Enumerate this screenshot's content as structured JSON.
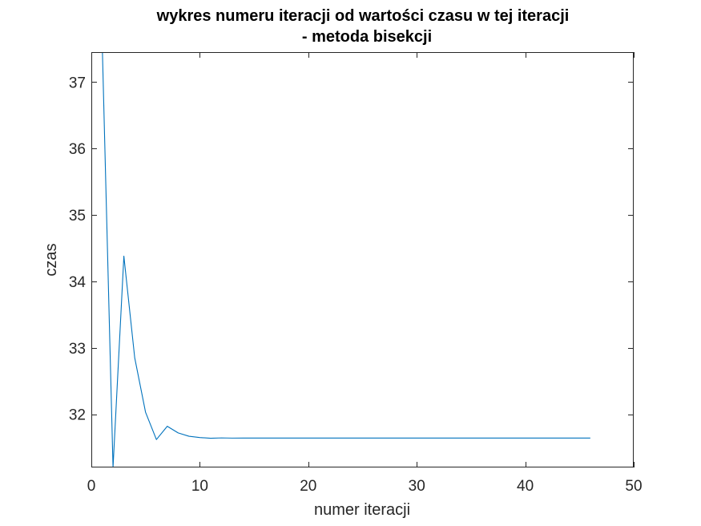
{
  "chart_data": {
    "type": "line",
    "title": [
      "wykres numeru iteracji od wartości czasu w tej iteracji",
      "- metoda bisekcji"
    ],
    "xlabel": "numer iteracji",
    "ylabel": "czas",
    "xlim": [
      0,
      50
    ],
    "ylim": [
      31.2,
      37.45
    ],
    "xticks": [
      0,
      10,
      20,
      30,
      40,
      50
    ],
    "yticks": [
      32,
      33,
      34,
      35,
      36,
      37
    ],
    "grid": false,
    "box": true,
    "line_color": "#0072BD",
    "axis_color": "#262626",
    "series": [
      {
        "x": [
          1,
          2,
          3,
          4,
          5,
          6,
          7,
          8,
          9,
          10,
          11,
          12,
          13,
          14,
          15,
          16,
          17,
          18,
          19,
          20,
          21,
          22,
          23,
          24,
          25,
          26,
          27,
          28,
          29,
          30,
          31,
          32,
          33,
          34,
          35,
          36,
          37,
          38,
          39,
          40,
          41,
          42,
          43,
          44,
          45,
          46
        ],
        "y": [
          37.6,
          31.2,
          34.38,
          32.85,
          32.03,
          31.62,
          31.82,
          31.72,
          31.67,
          31.65,
          31.64,
          31.645,
          31.642,
          31.643,
          31.643,
          31.643,
          31.643,
          31.643,
          31.643,
          31.643,
          31.643,
          31.643,
          31.643,
          31.643,
          31.643,
          31.643,
          31.643,
          31.643,
          31.643,
          31.643,
          31.643,
          31.643,
          31.643,
          31.643,
          31.643,
          31.643,
          31.643,
          31.643,
          31.643,
          31.643,
          31.643,
          31.643,
          31.643,
          31.643,
          31.643,
          31.643
        ]
      }
    ]
  }
}
